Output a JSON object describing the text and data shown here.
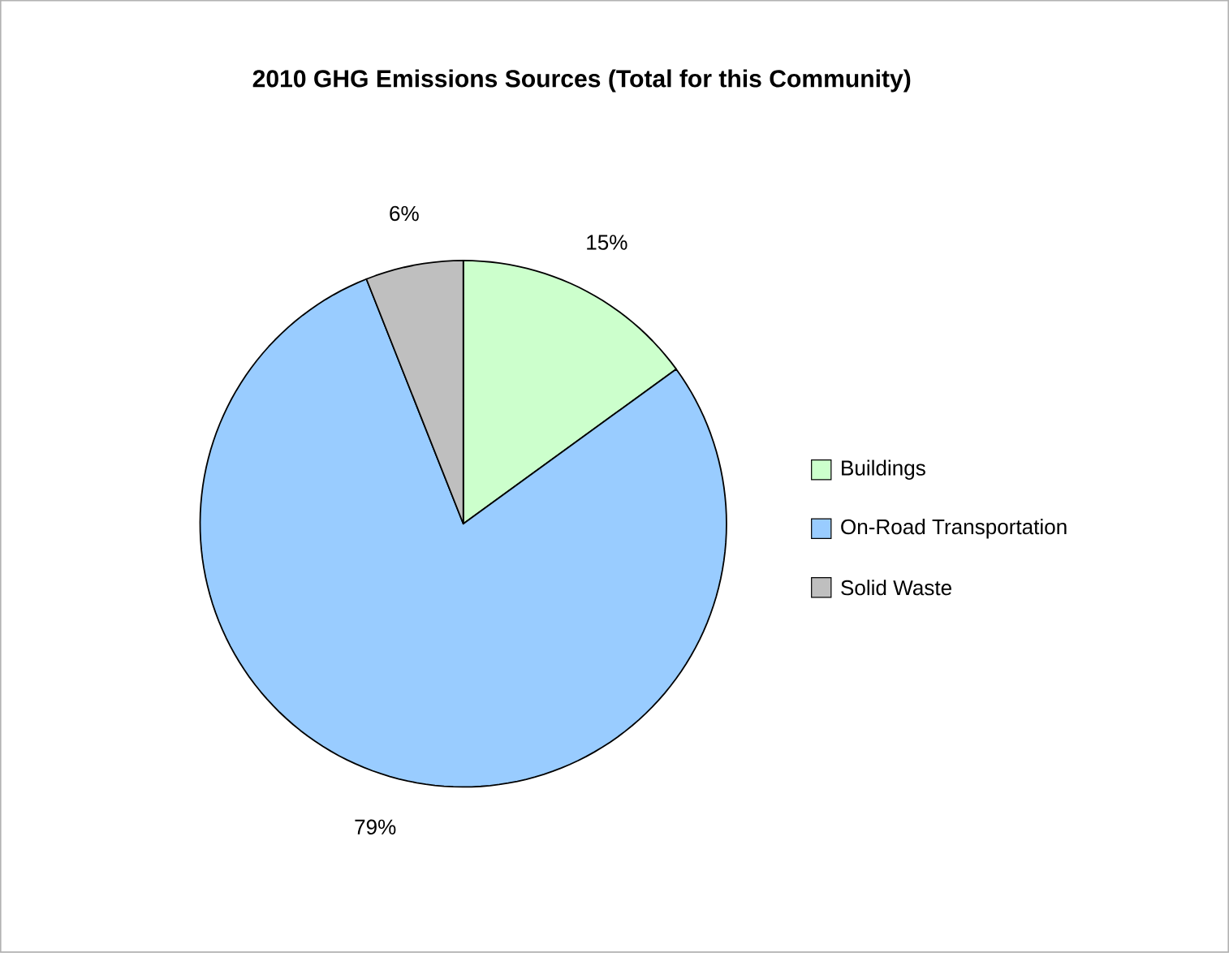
{
  "chart_data": {
    "type": "pie",
    "title": "2010 GHG Emissions Sources (Total for this Community)",
    "categories": [
      "Buildings",
      "On-Road Transportation",
      "Solid Waste"
    ],
    "values": [
      15,
      79,
      6
    ],
    "colors": [
      "#ccffcc",
      "#99ccff",
      "#bfbfbf"
    ],
    "value_labels": [
      "15%",
      "79%",
      "6%"
    ],
    "legend": "right"
  }
}
